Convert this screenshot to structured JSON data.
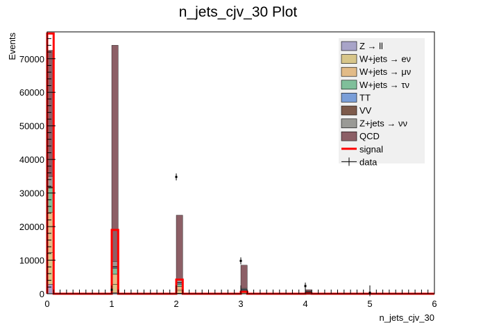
{
  "chart_data": {
    "type": "bar",
    "title": "n_jets_cjv_30 Plot",
    "xlabel": "n_jets_cjv_30",
    "ylabel": "Events",
    "xlim": [
      0,
      6
    ],
    "ylim": [
      0,
      78000
    ],
    "x_ticks": [
      "0",
      "1",
      "2",
      "3",
      "4",
      "5",
      "6"
    ],
    "y_ticks": [
      "0",
      "10000",
      "20000",
      "30000",
      "40000",
      "50000",
      "60000",
      "70000"
    ],
    "y_tick_values": [
      0,
      10000,
      20000,
      30000,
      40000,
      50000,
      60000,
      70000
    ],
    "bin_width": 0.1,
    "bins": [
      0.0,
      1.0,
      2.0,
      3.0,
      4.0
    ],
    "legend_position": "top-right",
    "stack": [
      {
        "name": "Z → ll",
        "color": "#a8a4c8",
        "values": [
          2800,
          300,
          150,
          80,
          30
        ]
      },
      {
        "name": "W+jets → eν",
        "color": "#d8c68a",
        "values": [
          9500,
          2500,
          900,
          300,
          120
        ]
      },
      {
        "name": "W+jets → μν",
        "color": "#e2bb88",
        "values": [
          12000,
          3000,
          1100,
          400,
          150
        ]
      },
      {
        "name": "W+jets → τν",
        "color": "#7fbf9a",
        "values": [
          7200,
          1800,
          700,
          250,
          100
        ]
      },
      {
        "name": "TT",
        "color": "#7a9ed8",
        "values": [
          100,
          250,
          300,
          200,
          80
        ]
      },
      {
        "name": "VV",
        "color": "#7d5a4b",
        "values": [
          200,
          300,
          200,
          100,
          40
        ]
      },
      {
        "name": "Z+jets → νν",
        "color": "#9a9a96",
        "values": [
          3200,
          1500,
          700,
          300,
          120
        ]
      },
      {
        "name": "QCD",
        "color": "#8c5f66",
        "values": [
          37500,
          64350,
          19350,
          6870,
          560
        ]
      }
    ],
    "signal": {
      "name": "signal",
      "color": "#ff0000",
      "values": [
        77500,
        19000,
        4200,
        600,
        50
      ]
    },
    "data": {
      "name": "data",
      "x": [
        1.0,
        2.0,
        3.0,
        4.0,
        5.0
      ],
      "y": [
        1200,
        34800,
        9800,
        2300,
        300
      ]
    }
  }
}
